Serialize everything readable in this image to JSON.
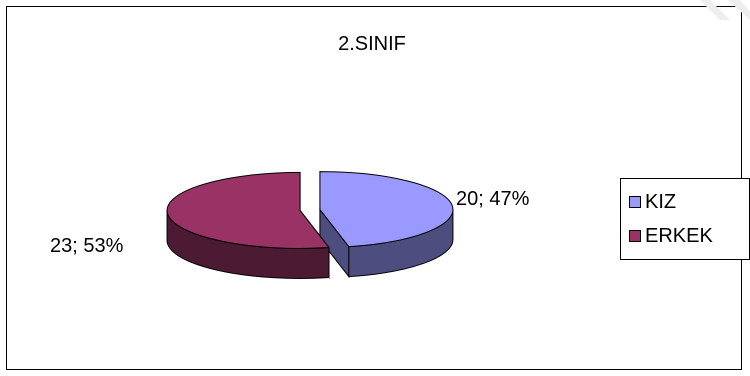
{
  "chart_data": {
    "type": "pie",
    "title": "2.SINIF",
    "categories": [
      "KIZ",
      "ERKEK"
    ],
    "values": [
      20,
      23
    ],
    "percentages": [
      47,
      53
    ],
    "data_labels": [
      "20; 47%",
      "23; 53%"
    ],
    "colors": [
      "#9999ff",
      "#993366"
    ],
    "side_colors": [
      "#4d4d80",
      "#4d1a33"
    ],
    "legend": {
      "position": "right",
      "entries": [
        {
          "label": "KIZ",
          "color": "#9999ff"
        },
        {
          "label": "ERKEK",
          "color": "#993366"
        }
      ]
    },
    "style": "3d-exploded"
  }
}
